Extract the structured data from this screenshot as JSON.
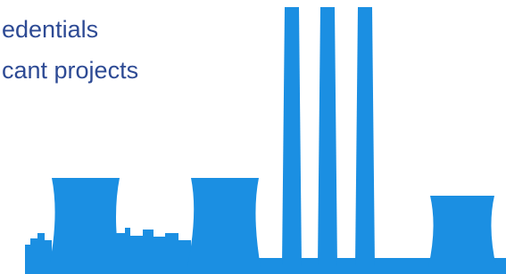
{
  "text": {
    "line1": "edentials",
    "line2": "cant projects"
  }
}
